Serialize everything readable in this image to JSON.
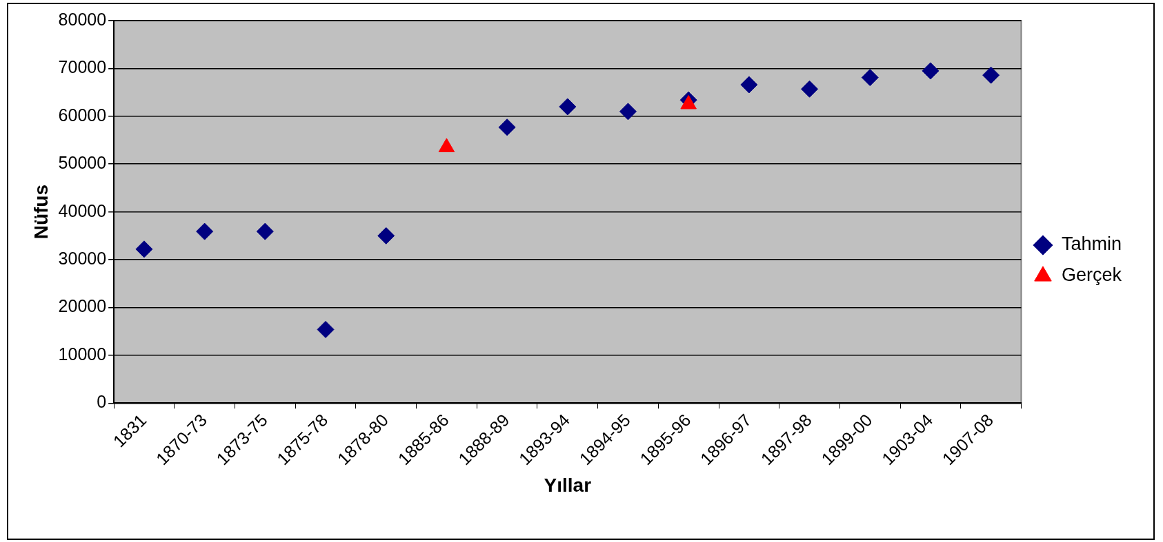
{
  "chart_data": {
    "type": "scatter",
    "xlabel": "Yıllar",
    "ylabel": "Nüfus",
    "categories": [
      "1831",
      "1870-73",
      "1873-75",
      "1875-78",
      "1878-80",
      "1885-86",
      "1888-89",
      "1893-94",
      "1894-95",
      "1895-96",
      "1896-97",
      "1897-98",
      "1899-00",
      "1903-04",
      "1907-08"
    ],
    "series": [
      {
        "name": "Tahmin",
        "color": "#000080",
        "marker": "diamond",
        "values": [
          32200,
          35900,
          35900,
          15400,
          35000,
          null,
          57700,
          62000,
          61000,
          63400,
          66600,
          65700,
          68100,
          69500,
          68600
        ]
      },
      {
        "name": "Gerçek",
        "color": "#ff0000",
        "marker": "triangle",
        "values": [
          null,
          null,
          null,
          null,
          null,
          53500,
          null,
          null,
          null,
          62500,
          null,
          null,
          null,
          null,
          null
        ]
      }
    ],
    "ylim": [
      0,
      80000
    ],
    "yticks": [
      0,
      10000,
      20000,
      30000,
      40000,
      50000,
      60000,
      70000,
      80000
    ],
    "grid": "y",
    "legend": "right"
  }
}
